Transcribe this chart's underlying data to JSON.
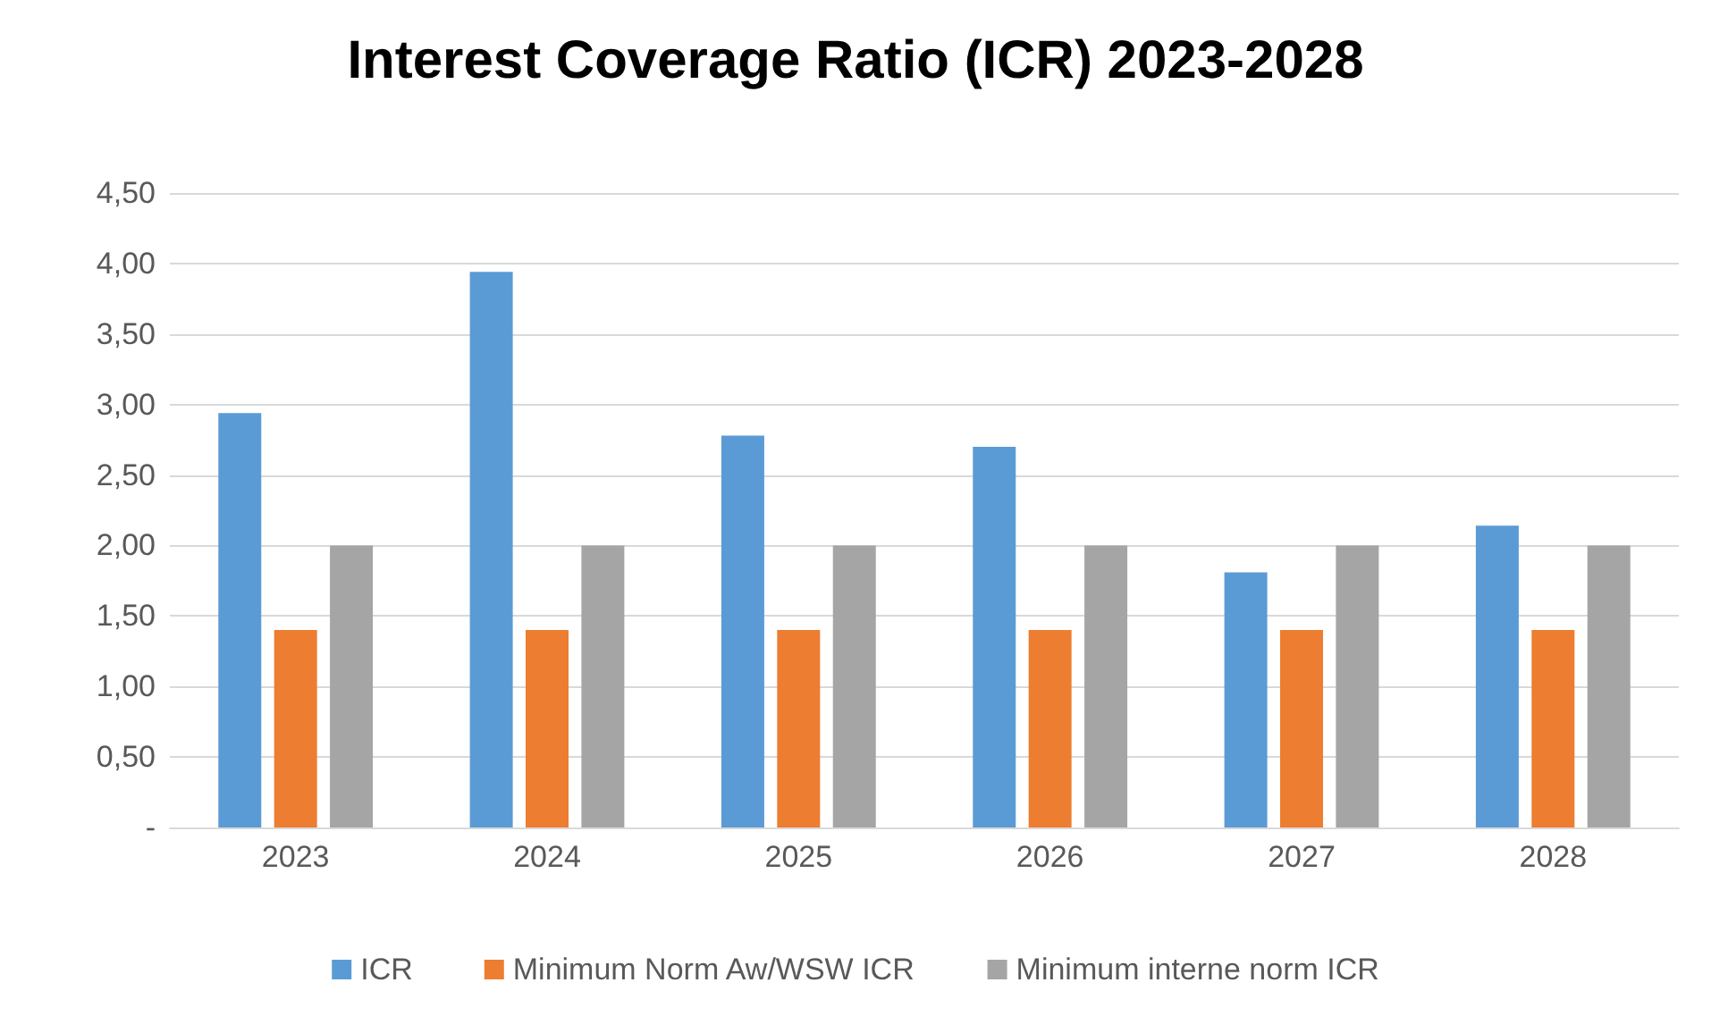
{
  "chart_data": {
    "type": "bar",
    "title": "Interest Coverage Ratio (ICR) 2023-2028",
    "categories": [
      "2023",
      "2024",
      "2025",
      "2026",
      "2027",
      "2028"
    ],
    "series": [
      {
        "name": "ICR",
        "color": "#5b9bd5",
        "values": [
          2.94,
          3.94,
          2.78,
          2.7,
          1.81,
          2.14
        ]
      },
      {
        "name": "Minimum Norm Aw/WSW ICR",
        "color": "#ed7d31",
        "values": [
          1.4,
          1.4,
          1.4,
          1.4,
          1.4,
          1.4
        ]
      },
      {
        "name": "Minimum interne norm ICR",
        "color": "#a5a5a5",
        "values": [
          2.0,
          2.0,
          2.0,
          2.0,
          2.0,
          2.0
        ]
      }
    ],
    "ylim": [
      0,
      4.5
    ],
    "yticks": [
      {
        "value": 0,
        "label": "-"
      },
      {
        "value": 0.5,
        "label": "0,50"
      },
      {
        "value": 1,
        "label": "1,00"
      },
      {
        "value": 1.5,
        "label": "1,50"
      },
      {
        "value": 2,
        "label": "2,00"
      },
      {
        "value": 2.5,
        "label": "2,50"
      },
      {
        "value": 3,
        "label": "3,00"
      },
      {
        "value": 3.5,
        "label": "3,50"
      },
      {
        "value": 4,
        "label": "4,00"
      },
      {
        "value": 4.5,
        "label": "4,50"
      }
    ],
    "grid": "y",
    "legend": "bottom"
  }
}
